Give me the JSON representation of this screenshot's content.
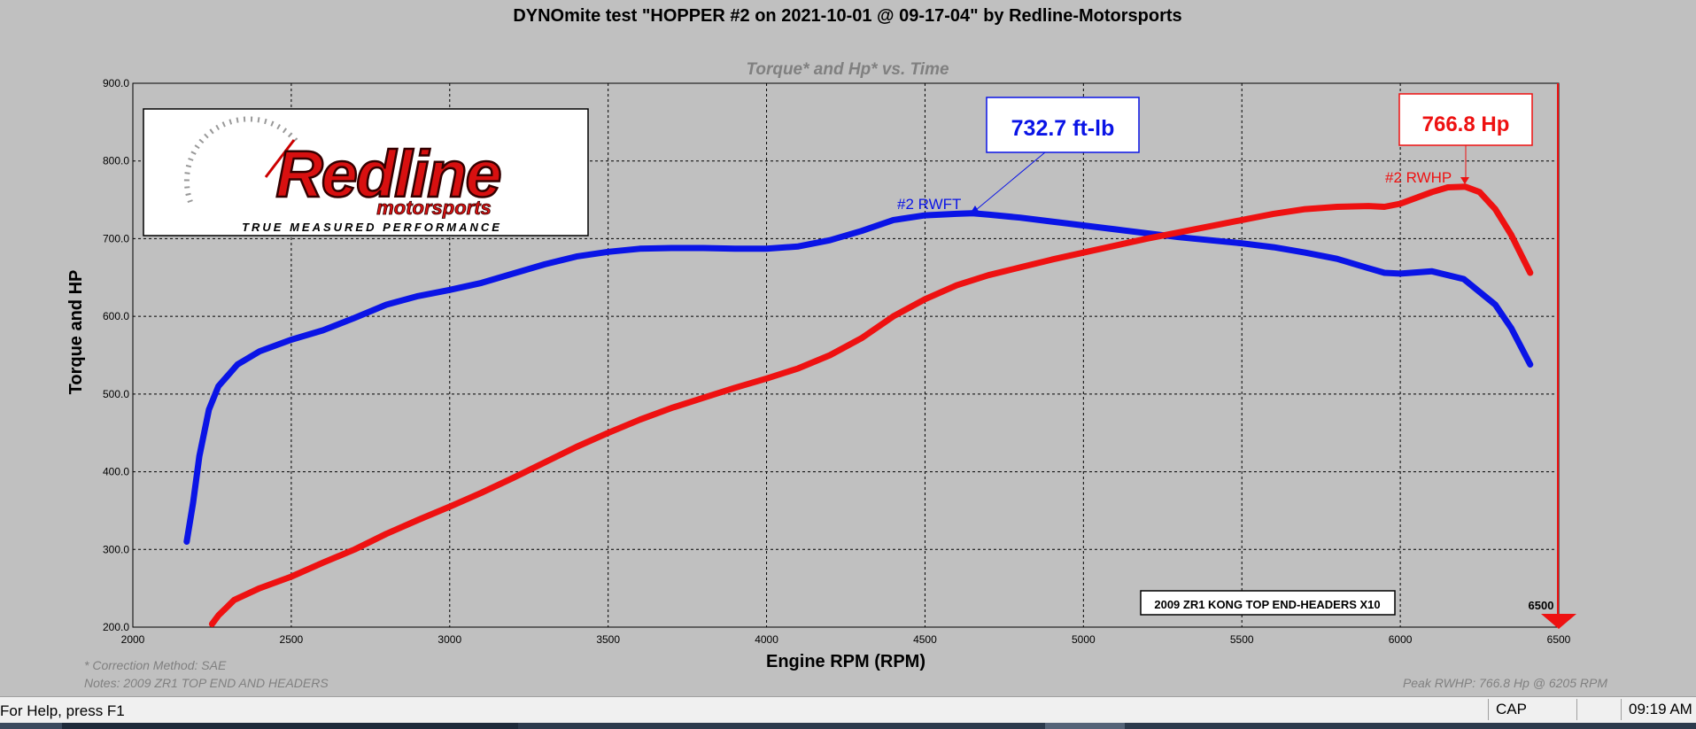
{
  "window_title": "DYNOmite test \"HOPPER #2 on 2021-10-01 @ 09-17-04\" by Redline-Motorsports",
  "chart_title": "Torque* and Hp* vs. Time",
  "logo_text": "Redline motorsports",
  "logo_tagline": "TRUE MEASURED PERFORMANCE",
  "legend_box": "2009 ZR1 KONG TOP END-HEADERS X10",
  "rpm_marker": "6500",
  "torque_peak_label": "732.7 ft-lb",
  "hp_peak_label": "766.8 Hp",
  "torque_series_label": "#2 RWFT",
  "hp_series_label": "#2 RWHP",
  "footnote_correction": "* Correction Method: SAE",
  "footnote_notes": "Notes: 2009 ZR1 TOP END AND HEADERS",
  "footnote_peak": "Peak RWHP: 766.8 Hp @ 6205 RPM",
  "colors": {
    "torque": "#0a14e6",
    "hp": "#ee1111",
    "background": "#c0c0c0",
    "grid": "#000000"
  },
  "status_bar": {
    "help": "For Help, press F1",
    "cap": "CAP",
    "time": "09:19 AM"
  },
  "chart_data": {
    "type": "line",
    "title": "Torque* and Hp* vs. Time",
    "xlabel": "Engine RPM (RPM)",
    "ylabel": "Torque and HP",
    "xlim": [
      2000,
      6500
    ],
    "ylim": [
      200,
      900
    ],
    "x_ticks": [
      "2000",
      "2500",
      "3000",
      "3500",
      "4000",
      "4500",
      "5000",
      "5500",
      "6000",
      "6500"
    ],
    "y_ticks": [
      "200.0",
      "300.0",
      "400.0",
      "500.0",
      "600.0",
      "700.0",
      "800.0",
      "900.0"
    ],
    "grid": true,
    "series": [
      {
        "name": "#2 RWFT",
        "color": "#0a14e6",
        "x": [
          2170,
          2190,
          2210,
          2240,
          2270,
          2330,
          2400,
          2500,
          2600,
          2700,
          2800,
          2900,
          3000,
          3100,
          3200,
          3300,
          3400,
          3500,
          3600,
          3700,
          3800,
          3900,
          4000,
          4100,
          4200,
          4300,
          4400,
          4500,
          4600,
          4650,
          4700,
          4800,
          4900,
          5000,
          5100,
          5200,
          5300,
          5400,
          5500,
          5600,
          5700,
          5800,
          5900,
          5950,
          6000,
          6100,
          6200,
          6300,
          6350,
          6410
        ],
        "values": [
          310,
          360,
          420,
          480,
          510,
          538,
          555,
          570,
          582,
          598,
          615,
          626,
          634,
          643,
          655,
          667,
          677,
          683,
          687,
          688,
          688,
          687,
          687,
          690,
          698,
          710,
          724,
          730,
          732,
          732.7,
          731,
          727,
          722,
          717,
          712,
          707,
          702,
          698,
          694,
          689,
          682,
          674,
          662,
          656,
          655,
          658,
          648,
          615,
          585,
          538
        ]
      },
      {
        "name": "#2 RWHP",
        "color": "#ee1111",
        "x": [
          2250,
          2270,
          2320,
          2400,
          2500,
          2600,
          2700,
          2800,
          2900,
          3000,
          3100,
          3200,
          3300,
          3400,
          3500,
          3600,
          3700,
          3800,
          3900,
          4000,
          4100,
          4200,
          4300,
          4400,
          4500,
          4600,
          4700,
          4800,
          4900,
          5000,
          5100,
          5200,
          5300,
          5400,
          5500,
          5600,
          5700,
          5800,
          5900,
          5950,
          6000,
          6100,
          6150,
          6205,
          6250,
          6300,
          6350,
          6410
        ],
        "values": [
          204,
          215,
          235,
          250,
          265,
          283,
          300,
          320,
          338,
          355,
          373,
          392,
          412,
          432,
          450,
          467,
          482,
          495,
          508,
          520,
          533,
          550,
          572,
          600,
          622,
          640,
          653,
          663,
          673,
          682,
          691,
          700,
          708,
          716,
          724,
          732,
          738,
          741,
          742,
          741,
          745,
          760,
          766,
          766.8,
          760,
          738,
          705,
          656
        ]
      }
    ]
  }
}
